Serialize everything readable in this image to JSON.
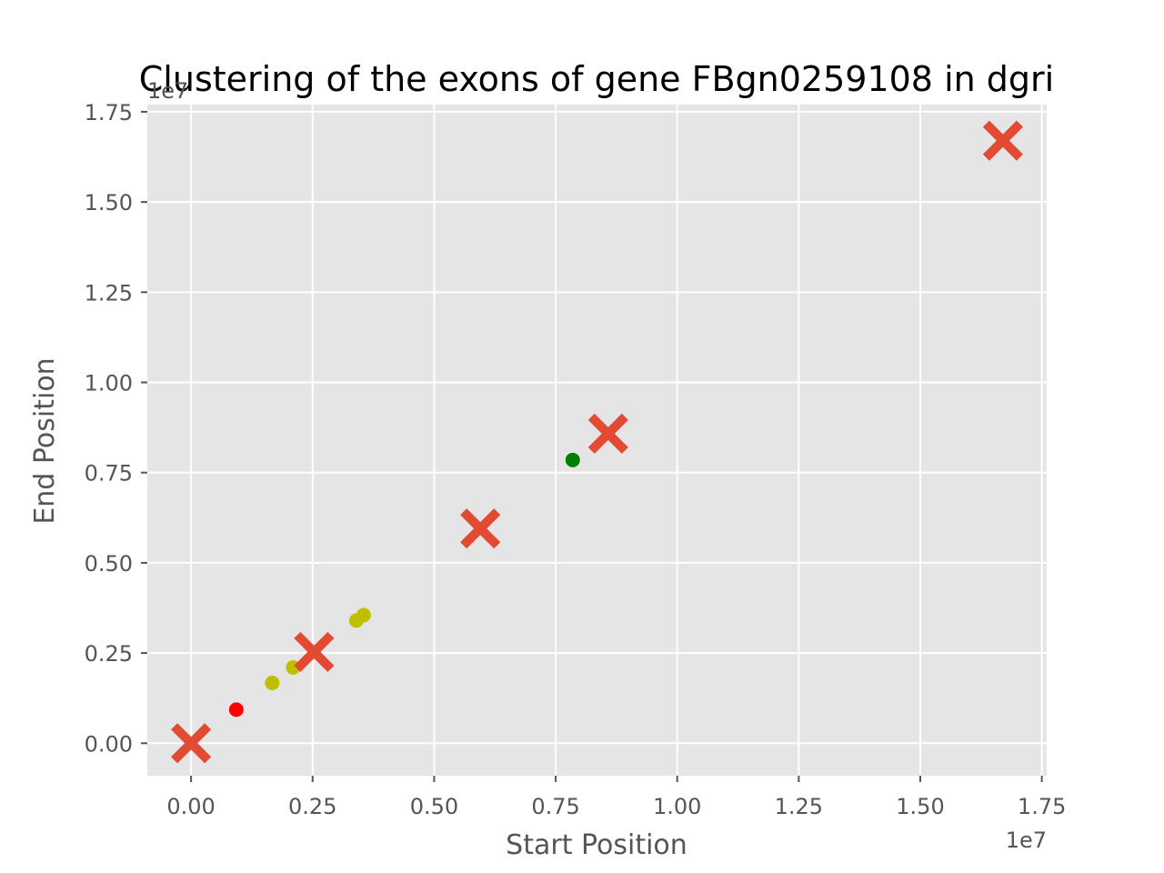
{
  "chart_data": {
    "type": "scatter",
    "title": "Clustering of the exons of gene FBgn0259108 in dgri",
    "xlabel": "Start Position",
    "ylabel": "End Position",
    "x_offset_label": "1e7",
    "y_offset_label": "1e7",
    "xlim": [
      -0.09,
      1.76
    ],
    "ylim": [
      -0.09,
      1.77
    ],
    "x_ticks": [
      0.0,
      0.25,
      0.5,
      0.75,
      1.0,
      1.25,
      1.5,
      1.75
    ],
    "x_tick_labels": [
      "0.00",
      "0.25",
      "0.50",
      "0.75",
      "1.00",
      "1.25",
      "1.50",
      "1.75"
    ],
    "y_ticks": [
      0.0,
      0.25,
      0.5,
      0.75,
      1.0,
      1.25,
      1.5,
      1.75
    ],
    "y_tick_labels": [
      "0.00",
      "0.25",
      "0.50",
      "0.75",
      "1.00",
      "1.25",
      "1.50",
      "1.75"
    ],
    "grid": true,
    "background_color": "#e5e5e5",
    "grid_color": "#ffffff",
    "series": [
      {
        "marker": "circle",
        "color": "#ff0000",
        "points": [
          [
            0.093,
            0.093
          ]
        ]
      },
      {
        "marker": "circle",
        "color": "#bfbf00",
        "points": [
          [
            0.167,
            0.167
          ],
          [
            0.21,
            0.21
          ],
          [
            0.34,
            0.34
          ],
          [
            0.355,
            0.355
          ]
        ]
      },
      {
        "marker": "circle",
        "color": "#008000",
        "points": [
          [
            0.785,
            0.785
          ]
        ]
      },
      {
        "marker": "x",
        "color": "#e24a33",
        "points": [
          [
            0.0,
            0.0
          ],
          [
            0.253,
            0.253
          ],
          [
            0.595,
            0.595
          ],
          [
            0.858,
            0.858
          ],
          [
            1.67,
            1.67
          ]
        ]
      }
    ]
  }
}
